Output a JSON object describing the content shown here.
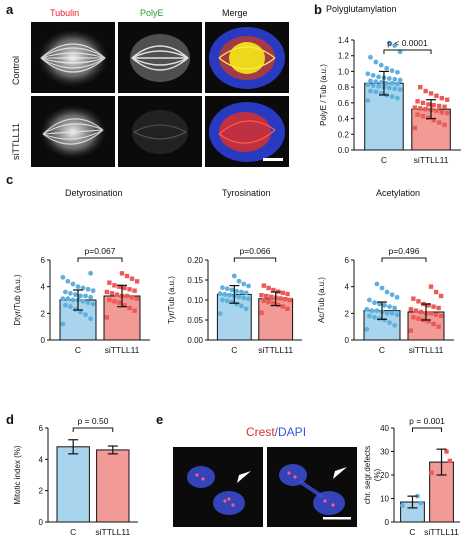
{
  "panel_a": {
    "letter": "a",
    "columns": [
      {
        "label": "Tubulin",
        "color": "#e8202a"
      },
      {
        "label": "PolyE",
        "color": "#2aa02a"
      },
      {
        "label": "Merge",
        "color": "#111111"
      }
    ],
    "rows": [
      "Control",
      "siTTLL11"
    ]
  },
  "panel_e_image": {
    "letter": "e",
    "label_crest": "Crest",
    "label_sep": "/",
    "label_dapi": "DAPI"
  },
  "colors": {
    "control": "#5fb0dc",
    "sittll11": "#ec5a55",
    "control_fill": "#a9d4ee",
    "sittll11_fill": "#f19a96"
  },
  "chart_data": [
    {
      "id": "b",
      "letter": "b",
      "type": "bar",
      "title": "Polyglutamylation",
      "ylabel": "PolyE / Tub (a.u.)",
      "categories": [
        "C",
        "siTTLL11"
      ],
      "values": [
        0.85,
        0.52
      ],
      "sd": [
        0.15,
        0.12
      ],
      "ylim": [
        0,
        1.4
      ],
      "yticks": [
        0.0,
        0.2,
        0.4,
        0.6,
        0.8,
        1.0,
        1.2,
        1.4
      ],
      "ytick_labels": [
        "0.0",
        "0.2",
        "0.4",
        "0.6",
        "0.8",
        "1.0",
        "1.2",
        "1.4"
      ],
      "pvalue": "p < 0.0001",
      "points": [
        [
          0.63,
          0.66,
          0.68,
          0.7,
          0.72,
          0.74,
          0.75,
          0.77,
          0.78,
          0.79,
          0.8,
          0.81,
          0.82,
          0.83,
          0.84,
          0.85,
          0.85,
          0.86,
          0.87,
          0.88,
          0.89,
          0.9,
          0.91,
          0.92,
          0.93,
          0.95,
          0.97,
          0.99,
          1.01,
          1.04,
          1.08,
          1.12,
          1.18,
          1.25,
          1.33,
          1.36
        ],
        [
          0.28,
          0.32,
          0.35,
          0.38,
          0.41,
          0.43,
          0.45,
          0.47,
          0.48,
          0.5,
          0.51,
          0.52,
          0.53,
          0.54,
          0.55,
          0.56,
          0.57,
          0.58,
          0.6,
          0.62,
          0.64,
          0.66,
          0.69,
          0.72,
          0.75,
          0.8
        ]
      ]
    },
    {
      "id": "c1",
      "letter": "c",
      "type": "bar",
      "title": "Detyrosination",
      "ylabel": "Dtyr/Tub (a.u.)",
      "categories": [
        "C",
        "siTTLL11"
      ],
      "values": [
        3.0,
        3.3
      ],
      "sd": [
        0.75,
        0.8
      ],
      "ylim": [
        0,
        6
      ],
      "yticks": [
        0,
        2,
        4,
        6
      ],
      "ytick_labels": [
        "0",
        "2",
        "4",
        "6"
      ],
      "pvalue": "p=0.067",
      "points": [
        [
          1.2,
          1.6,
          1.9,
          2.1,
          2.3,
          2.5,
          2.6,
          2.7,
          2.8,
          2.9,
          3.0,
          3.0,
          3.1,
          3.1,
          3.2,
          3.3,
          3.3,
          3.4,
          3.5,
          3.6,
          3.7,
          3.8,
          3.9,
          4.0,
          4.2,
          4.4,
          4.7,
          5.0
        ],
        [
          1.7,
          2.2,
          2.4,
          2.6,
          2.8,
          2.9,
          3.0,
          3.1,
          3.2,
          3.3,
          3.3,
          3.4,
          3.5,
          3.6,
          3.7,
          3.8,
          3.9,
          4.0,
          4.1,
          4.3,
          4.4,
          4.6,
          4.8,
          5.0
        ]
      ]
    },
    {
      "id": "c2",
      "type": "bar",
      "title": "Tyrosination",
      "ylabel": "Tyr/Tub (a.u.)",
      "categories": [
        "C",
        "siTTLL11"
      ],
      "values": [
        0.114,
        0.103
      ],
      "sd": [
        0.022,
        0.017
      ],
      "ylim": [
        0,
        0.2
      ],
      "yticks": [
        0.0,
        0.05,
        0.1,
        0.15,
        0.2
      ],
      "ytick_labels": [
        "0.00",
        "0.05",
        "0.10",
        "0.15",
        "0.20"
      ],
      "pvalue": "p=0.066",
      "points": [
        [
          0.066,
          0.078,
          0.085,
          0.09,
          0.095,
          0.098,
          0.1,
          0.103,
          0.105,
          0.108,
          0.11,
          0.112,
          0.114,
          0.116,
          0.118,
          0.12,
          0.122,
          0.125,
          0.128,
          0.131,
          0.135,
          0.14,
          0.147,
          0.16
        ],
        [
          0.068,
          0.078,
          0.084,
          0.088,
          0.092,
          0.095,
          0.098,
          0.1,
          0.102,
          0.104,
          0.106,
          0.108,
          0.11,
          0.112,
          0.115,
          0.118,
          0.121,
          0.125,
          0.13,
          0.136
        ]
      ]
    },
    {
      "id": "c3",
      "type": "bar",
      "title": "Acetylation",
      "ylabel": "Ac/Tub (a.u.)",
      "categories": [
        "C",
        "siTTLL11"
      ],
      "values": [
        2.2,
        2.1
      ],
      "sd": [
        0.65,
        0.6
      ],
      "ylim": [
        0,
        6
      ],
      "yticks": [
        0,
        2,
        4,
        6
      ],
      "ytick_labels": [
        "0",
        "2",
        "4",
        "6"
      ],
      "pvalue": "p=0.496",
      "points": [
        [
          0.8,
          1.1,
          1.3,
          1.5,
          1.6,
          1.7,
          1.8,
          1.9,
          2.0,
          2.0,
          2.1,
          2.2,
          2.2,
          2.3,
          2.4,
          2.5,
          2.6,
          2.7,
          2.8,
          3.0,
          3.2,
          3.4,
          3.6,
          3.9,
          4.2
        ],
        [
          0.7,
          1.0,
          1.2,
          1.4,
          1.5,
          1.6,
          1.7,
          1.8,
          1.9,
          2.0,
          2.0,
          2.1,
          2.2,
          2.3,
          2.4,
          2.5,
          2.6,
          2.7,
          2.9,
          3.1,
          3.3,
          3.6,
          4.0
        ]
      ]
    },
    {
      "id": "d",
      "letter": "d",
      "type": "bar",
      "title": "",
      "ylabel": "Mitotic index (%)",
      "categories": [
        "C",
        "siTTLL11"
      ],
      "values": [
        4.8,
        4.6
      ],
      "sd": [
        0.45,
        0.25
      ],
      "ylim": [
        0,
        6
      ],
      "yticks": [
        0,
        2,
        4,
        6
      ],
      "ytick_labels": [
        "0",
        "2",
        "4",
        "6"
      ],
      "pvalue": "p = 0.50",
      "points": [
        [],
        []
      ]
    },
    {
      "id": "e",
      "type": "bar",
      "title": "",
      "ylabel": "chr. segr.defects (%)",
      "categories": [
        "C",
        "siTTLL11"
      ],
      "values": [
        8.5,
        25.5
      ],
      "sd": [
        2.5,
        5.5
      ],
      "ylim": [
        0,
        40
      ],
      "yticks": [
        0,
        10,
        20,
        30,
        40
      ],
      "ytick_labels": [
        "0",
        "10",
        "20",
        "30",
        "40"
      ],
      "pvalue": "p = 0.001",
      "points": [
        [
          7,
          8,
          11
        ],
        [
          21,
          26,
          30
        ]
      ]
    }
  ]
}
